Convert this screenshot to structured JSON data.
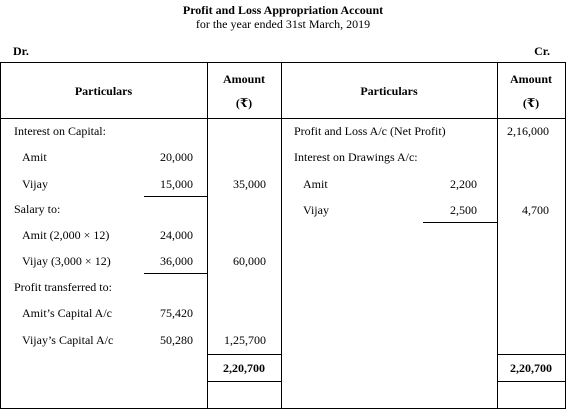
{
  "heading": {
    "title": "Profit and Loss Appropriation Account",
    "subtitle": "for the year ended 31st March, 2019"
  },
  "dr_label": "Dr.",
  "cr_label": "Cr.",
  "columns": {
    "left_particulars": "Particulars",
    "left_amount": "Amount",
    "left_currency": "(₹)",
    "right_particulars": "Particulars",
    "right_amount": "Amount",
    "right_currency": "(₹)"
  },
  "debit": {
    "interest_on_capital": {
      "label": "Interest on Capital:",
      "amit": {
        "name": "Amit",
        "value": "20,000"
      },
      "vijay": {
        "name": "Vijay",
        "value": "15,000"
      },
      "total": "35,000"
    },
    "salary": {
      "label": "Salary to:",
      "amit": {
        "name": "Amit (2,000 × 12)",
        "value": "24,000"
      },
      "vijay": {
        "name": "Vijay (3,000 × 12)",
        "value": "36,000"
      },
      "total": "60,000"
    },
    "profit_transferred": {
      "label": "Profit transferred to:",
      "amit": {
        "name": "Amit’s Capital A/c",
        "value": "75,420"
      },
      "vijay": {
        "name": "Vijay’s Capital A/c",
        "value": "50,280"
      },
      "total": "1,25,700"
    },
    "grand_total": "2,20,700"
  },
  "credit": {
    "net_profit": {
      "label": "Profit and Loss A/c (Net Profit)",
      "value": "2,16,000"
    },
    "interest_on_drawings": {
      "label": "Interest on Drawings A/c:",
      "amit": {
        "name": "Amit",
        "value": "2,200"
      },
      "vijay": {
        "name": "Vijay",
        "value": "2,500"
      },
      "total": "4,700"
    },
    "grand_total": "2,20,700"
  }
}
